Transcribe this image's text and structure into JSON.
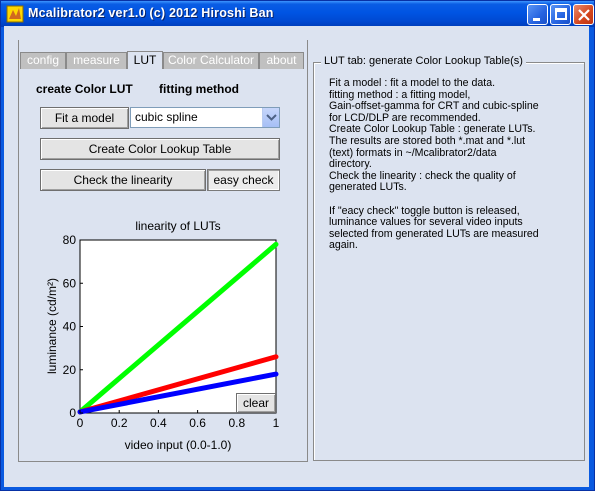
{
  "window": {
    "title": "Mcalibrator2 ver1.0 (c) 2012 Hiroshi Ban",
    "controls": [
      "minimize",
      "maximize",
      "close"
    ]
  },
  "tabs": [
    {
      "label": "config",
      "active": false
    },
    {
      "label": "measure",
      "active": false
    },
    {
      "label": "LUT",
      "active": true
    },
    {
      "label": "Color Calculator",
      "active": false
    },
    {
      "label": "about",
      "active": false
    }
  ],
  "lut": {
    "create_label": "create Color LUT",
    "fitting_label": "fitting method",
    "fit_button": "Fit a model",
    "method_value": "cubic spline",
    "create_button": "Create Color Lookup Table",
    "check_button": "Check the linearity",
    "easy_check_toggle": "easy check",
    "clear_button": "clear"
  },
  "help": {
    "legend": "LUT tab: generate Color Lookup Table(s)",
    "lines": [
      "Fit a model : fit a model to the data.",
      "fitting method : a fitting model,",
      "Gain-offset-gamma for CRT and cubic-spline",
      "for LCD/DLP are recommended.",
      "Create Color Lookup Table : generate LUTs.",
      "The results are stored both *.mat and *.lut",
      "(text) formats in ~/Mcalibrator2/data",
      "directory.",
      "Check the linearity : check the quality of",
      "generated LUTs.",
      "",
      "If \"eacy check\" toggle button is released,",
      "luminance values for several video inputs",
      "selected from generated LUTs are measured",
      "again."
    ]
  },
  "chart_data": {
    "type": "line",
    "title": "linearity of LUTs",
    "xlabel": "video input (0.0-1.0)",
    "ylabel": "luminance (cd/m²)",
    "xlim": [
      0,
      1
    ],
    "ylim": [
      0,
      80
    ],
    "xticks": [
      "0",
      "0.2",
      "0.4",
      "0.6",
      "0.8",
      "1"
    ],
    "yticks": [
      "0",
      "20",
      "40",
      "60",
      "80"
    ],
    "grid": false,
    "series": [
      {
        "color": "#00ff00",
        "x": [
          0,
          1
        ],
        "y": [
          0.5,
          78
        ]
      },
      {
        "color": "#ff0000",
        "x": [
          0,
          1
        ],
        "y": [
          0.5,
          26
        ]
      },
      {
        "color": "#0000ff",
        "x": [
          0,
          1
        ],
        "y": [
          0.5,
          18
        ]
      }
    ]
  }
}
